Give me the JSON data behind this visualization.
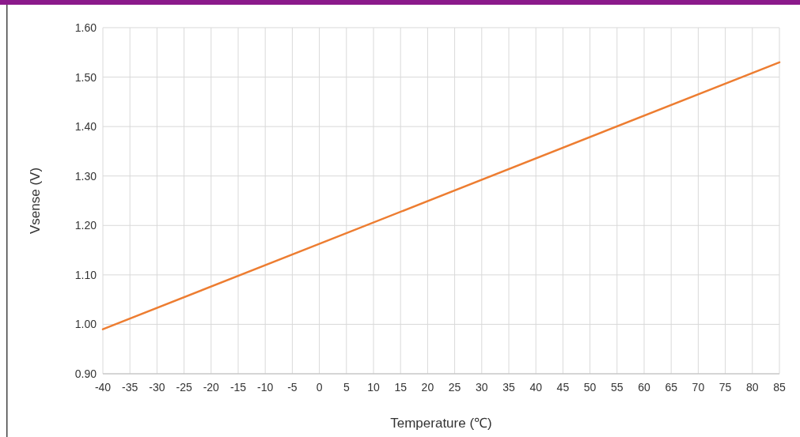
{
  "chart_data": {
    "type": "line",
    "xlabel": "Temperature (℃)",
    "ylabel": "Vsense (V)",
    "x": [
      -40,
      85
    ],
    "series": [
      {
        "color": "#ed7d31",
        "values": [
          0.99,
          1.53
        ]
      }
    ],
    "xlim": [
      -40,
      85
    ],
    "xticks": [
      -40,
      -35,
      -30,
      -25,
      -20,
      -15,
      -10,
      -5,
      0,
      5,
      10,
      15,
      20,
      25,
      30,
      35,
      40,
      45,
      50,
      55,
      60,
      65,
      70,
      75,
      80,
      85
    ],
    "ylim": [
      0.9,
      1.6
    ],
    "yticks": [
      {
        "value": 0.9,
        "label": "0.90"
      },
      {
        "value": 1.0,
        "label": "1.00"
      },
      {
        "value": 1.1,
        "label": "1.10"
      },
      {
        "value": 1.2,
        "label": "1.20"
      },
      {
        "value": 1.3,
        "label": "1.30"
      },
      {
        "value": 1.4,
        "label": "1.40"
      },
      {
        "value": 1.5,
        "label": "1.50"
      },
      {
        "value": 1.6,
        "label": "1.60"
      }
    ],
    "grid": true,
    "line_style": "solid",
    "marker": "none"
  }
}
